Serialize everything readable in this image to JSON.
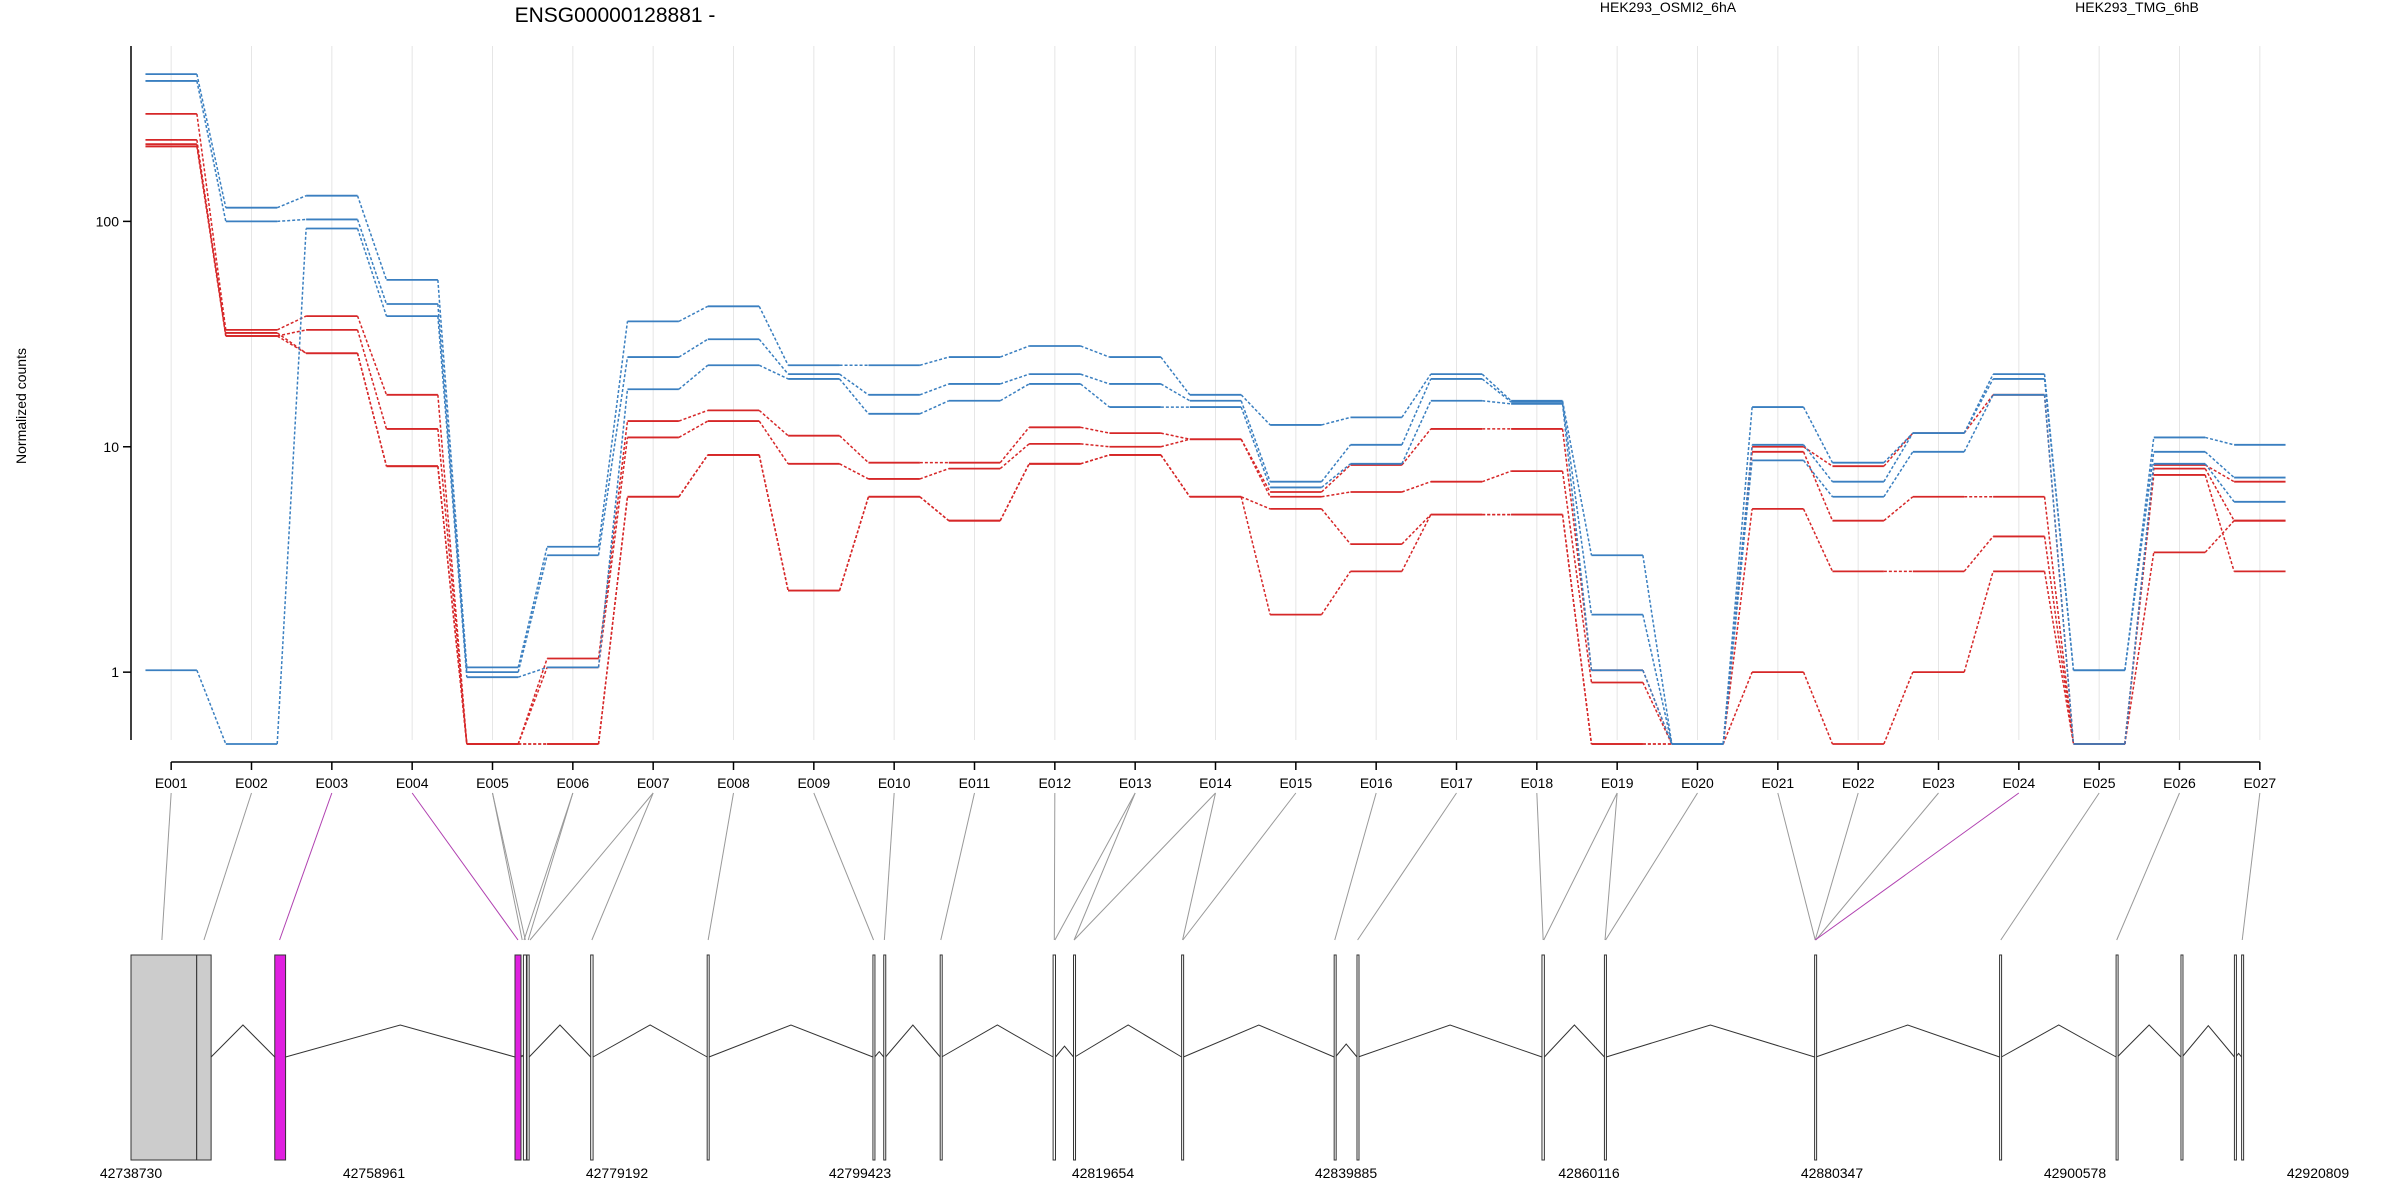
{
  "chart_data": {
    "type": "line",
    "title": "ENSG00000128881 -",
    "ylabel": "Normalized counts",
    "y_scale": "log",
    "ylim": [
      0.5,
      600
    ],
    "y_ticks": [
      1,
      10,
      100
    ],
    "y_tick_labels": [
      "1",
      "10",
      "100"
    ],
    "grid": "vertical lines at exon centers",
    "categories": [
      "E001",
      "E002",
      "E003",
      "E004",
      "E005",
      "E006",
      "E007",
      "E008",
      "E009",
      "E010",
      "E011",
      "E012",
      "E013",
      "E014",
      "E015",
      "E016",
      "E017",
      "E018",
      "E019",
      "E020",
      "E021",
      "E022",
      "E023",
      "E024",
      "E025",
      "E026",
      "E027"
    ],
    "legend": [
      {
        "label": "HEK293_OSMI2_6hA",
        "color": "#d62728"
      },
      {
        "label": "HEK293_TMG_6hB",
        "color": "#3a7fc0"
      }
    ],
    "series": [
      {
        "group": 0,
        "values": [
          300,
          33,
          38,
          17,
          0.48,
          1.15,
          13,
          14.5,
          11.2,
          8.5,
          8.5,
          12.2,
          11.5,
          10.8,
          6.3,
          8.3,
          12,
          12,
          1.02,
          0.48,
          10,
          8.2,
          11.5,
          17,
          0.48,
          8.3,
          7
        ]
      },
      {
        "group": 0,
        "values": [
          230,
          31,
          33,
          12,
          0.48,
          1.05,
          11,
          13,
          8.4,
          7.2,
          8,
          10.3,
          10,
          10.8,
          6,
          6.3,
          7,
          7.8,
          0.9,
          0.48,
          9.5,
          4.7,
          6,
          6,
          0.48,
          8,
          4.7
        ]
      },
      {
        "group": 0,
        "values": [
          220,
          32,
          26,
          8.2,
          0.48,
          0.48,
          6,
          9.2,
          2.3,
          6,
          4.7,
          8.4,
          9.2,
          6,
          5.3,
          3.7,
          5,
          5,
          0.48,
          0.48,
          5.3,
          2.8,
          2.8,
          4,
          0.48,
          7.5,
          2.8
        ]
      },
      {
        "group": 0,
        "values": [
          215,
          31,
          26,
          8.2,
          0.48,
          0.48,
          6,
          9.2,
          2.3,
          6,
          4.7,
          8.4,
          9.2,
          6,
          1.8,
          2.8,
          5,
          5,
          0.48,
          0.48,
          1,
          0.48,
          1,
          2.8,
          0.48,
          3.4,
          4.7
        ]
      },
      {
        "group": 1,
        "values": [
          450,
          115,
          130,
          55,
          1.05,
          3.6,
          36,
          42,
          23,
          23,
          25,
          28,
          25,
          17,
          12.5,
          13.5,
          21,
          16,
          3.3,
          0.48,
          15,
          8.5,
          11.5,
          21,
          1.02,
          11,
          10.2
        ]
      },
      {
        "group": 1,
        "values": [
          420,
          100,
          102,
          43,
          1,
          3.3,
          25,
          30,
          21,
          17,
          19,
          21,
          19,
          16,
          7,
          10.2,
          20,
          15.8,
          1.8,
          0.48,
          10.2,
          7,
          11.5,
          20,
          1.02,
          9.5,
          7.3
        ]
      },
      {
        "group": 1,
        "values": [
          1.02,
          0.48,
          93,
          38,
          0.95,
          1.05,
          18,
          23,
          20,
          14,
          16,
          19,
          15,
          15,
          6.6,
          8.4,
          16,
          15.5,
          1.02,
          0.48,
          8.7,
          6,
          9.5,
          17,
          0.48,
          8.4,
          5.7
        ]
      }
    ],
    "genomic_axis": {
      "tick_labels": [
        "42738730",
        "42758961",
        "42779192",
        "42799423",
        "42819654",
        "42839885",
        "42860116",
        "42880347",
        "42900578",
        "42920809"
      ],
      "start": 42738730,
      "end": 42920809,
      "highlighted_exons": [
        "E003",
        "E004",
        "E024"
      ],
      "highlight_color": "#e020e0"
    }
  },
  "colors": {
    "group0": "#d62728",
    "group1": "#3a7fc0",
    "axis": "#000000",
    "grid": "#e6e6e6",
    "connector": "#999999",
    "connector_highlight": "#b040b0",
    "gene_fill": "#cccccc",
    "exon_highlight": "#e020e0"
  }
}
